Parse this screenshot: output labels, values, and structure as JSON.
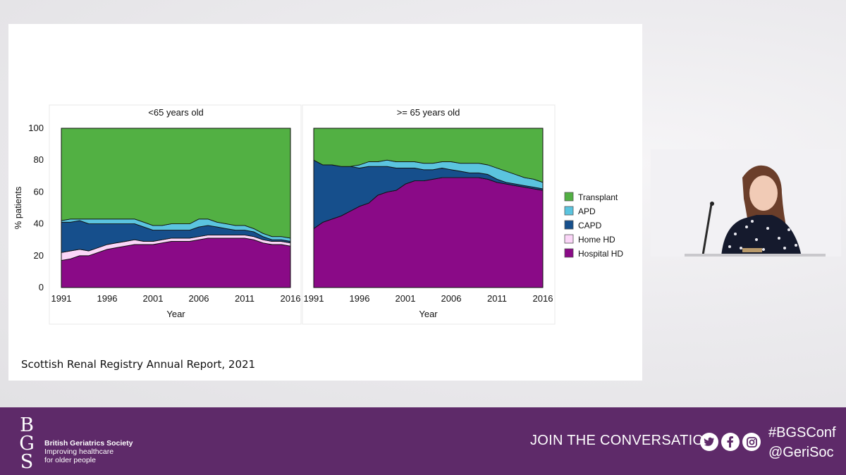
{
  "slide": {
    "caption": "Scottish Renal Registry Annual Report, 2021"
  },
  "chart_data": {
    "type": "area",
    "stacked": true,
    "ylabel": "% patients",
    "xlabel": "Year",
    "ylim": [
      0,
      100
    ],
    "yticks": [
      0,
      20,
      40,
      60,
      80,
      100
    ],
    "xticks": [
      1991,
      1996,
      2001,
      2006,
      2011,
      2016
    ],
    "legend": {
      "placement": "right",
      "entries": [
        {
          "name": "Transplant",
          "color": "#52b043"
        },
        {
          "name": "APD",
          "color": "#5bc4df"
        },
        {
          "name": "CAPD",
          "color": "#164f8c"
        },
        {
          "name": "Home HD",
          "color": "#fbd6f8"
        },
        {
          "name": "Hospital HD",
          "color": "#8a0a87"
        }
      ]
    },
    "x": [
      1991,
      1992,
      1993,
      1994,
      1995,
      1996,
      1997,
      1998,
      1999,
      2000,
      2001,
      2002,
      2003,
      2004,
      2005,
      2006,
      2007,
      2008,
      2009,
      2010,
      2011,
      2012,
      2013,
      2014,
      2015,
      2016
    ],
    "panels": [
      {
        "title": "<65 years old",
        "series": [
          {
            "name": "Hospital HD",
            "values": [
              17,
              18,
              20,
              20,
              22,
              24,
              25,
              26,
              27,
              27,
              27,
              28,
              29,
              29,
              29,
              30,
              31,
              31,
              31,
              31,
              31,
              30,
              28,
              27,
              27,
              26
            ]
          },
          {
            "name": "Home HD",
            "values": [
              5,
              5,
              4,
              3,
              3,
              3,
              3,
              3,
              3,
              2,
              2,
              2,
              2,
              2,
              2,
              2,
              2,
              2,
              2,
              2,
              2,
              2,
              2,
              2,
              2,
              2
            ]
          },
          {
            "name": "CAPD",
            "values": [
              19,
              18,
              18,
              17,
              15,
              13,
              12,
              11,
              10,
              9,
              7,
              6,
              5,
              5,
              5,
              6,
              6,
              5,
              4,
              3,
              3,
              3,
              2,
              1,
              1,
              1
            ]
          },
          {
            "name": "APD",
            "values": [
              1,
              2,
              1,
              3,
              3,
              3,
              3,
              3,
              3,
              3,
              3,
              3,
              4,
              4,
              4,
              5,
              4,
              3,
              3,
              3,
              3,
              2,
              2,
              2,
              2,
              2
            ]
          },
          {
            "name": "Transplant",
            "values": [
              58,
              57,
              57,
              57,
              57,
              57,
              57,
              57,
              57,
              59,
              61,
              61,
              60,
              60,
              60,
              57,
              57,
              59,
              60,
              61,
              61,
              63,
              66,
              68,
              68,
              69
            ]
          }
        ]
      },
      {
        "title": ">= 65 years old",
        "series": [
          {
            "name": "Hospital HD",
            "values": [
              37,
              41,
              43,
              45,
              48,
              51,
              53,
              58,
              60,
              61,
              65,
              67,
              67,
              68,
              69,
              69,
              69,
              69,
              69,
              68,
              66,
              65,
              64,
              63,
              62,
              61
            ]
          },
          {
            "name": "Home HD",
            "values": [
              0,
              0,
              0,
              0,
              0,
              0,
              0,
              0,
              0,
              0,
              0,
              0,
              0,
              0,
              0,
              0,
              0,
              0,
              0,
              0,
              0,
              0,
              0,
              0,
              0,
              0
            ]
          },
          {
            "name": "CAPD",
            "values": [
              43,
              36,
              34,
              31,
              28,
              24,
              23,
              18,
              16,
              14,
              10,
              8,
              7,
              6,
              6,
              5,
              4,
              3,
              3,
              3,
              2,
              1,
              1,
              1,
              1,
              1
            ]
          },
          {
            "name": "APD",
            "values": [
              0,
              0,
              0,
              0,
              0,
              2,
              3,
              3,
              4,
              4,
              4,
              4,
              4,
              4,
              4,
              5,
              5,
              6,
              6,
              6,
              7,
              7,
              6,
              5,
              5,
              4
            ]
          },
          {
            "name": "Transplant",
            "values": [
              20,
              23,
              23,
              24,
              24,
              23,
              21,
              21,
              20,
              21,
              21,
              21,
              22,
              22,
              21,
              21,
              22,
              22,
              22,
              23,
              25,
              27,
              29,
              31,
              32,
              34
            ]
          }
        ]
      }
    ]
  },
  "video": {
    "speaker_description_label": "speaker"
  },
  "footer": {
    "logo_letters": "BGS",
    "org_name": "British Geriatrics Society",
    "tagline_1": "Improving healthcare",
    "tagline_2": "for older people",
    "join_text": "JOIN THE CONVERSATION",
    "hashtag": "#BGSConf",
    "handle": "@GeriSoc",
    "social_icons": [
      "twitter-icon",
      "facebook-icon",
      "instagram-icon"
    ]
  }
}
